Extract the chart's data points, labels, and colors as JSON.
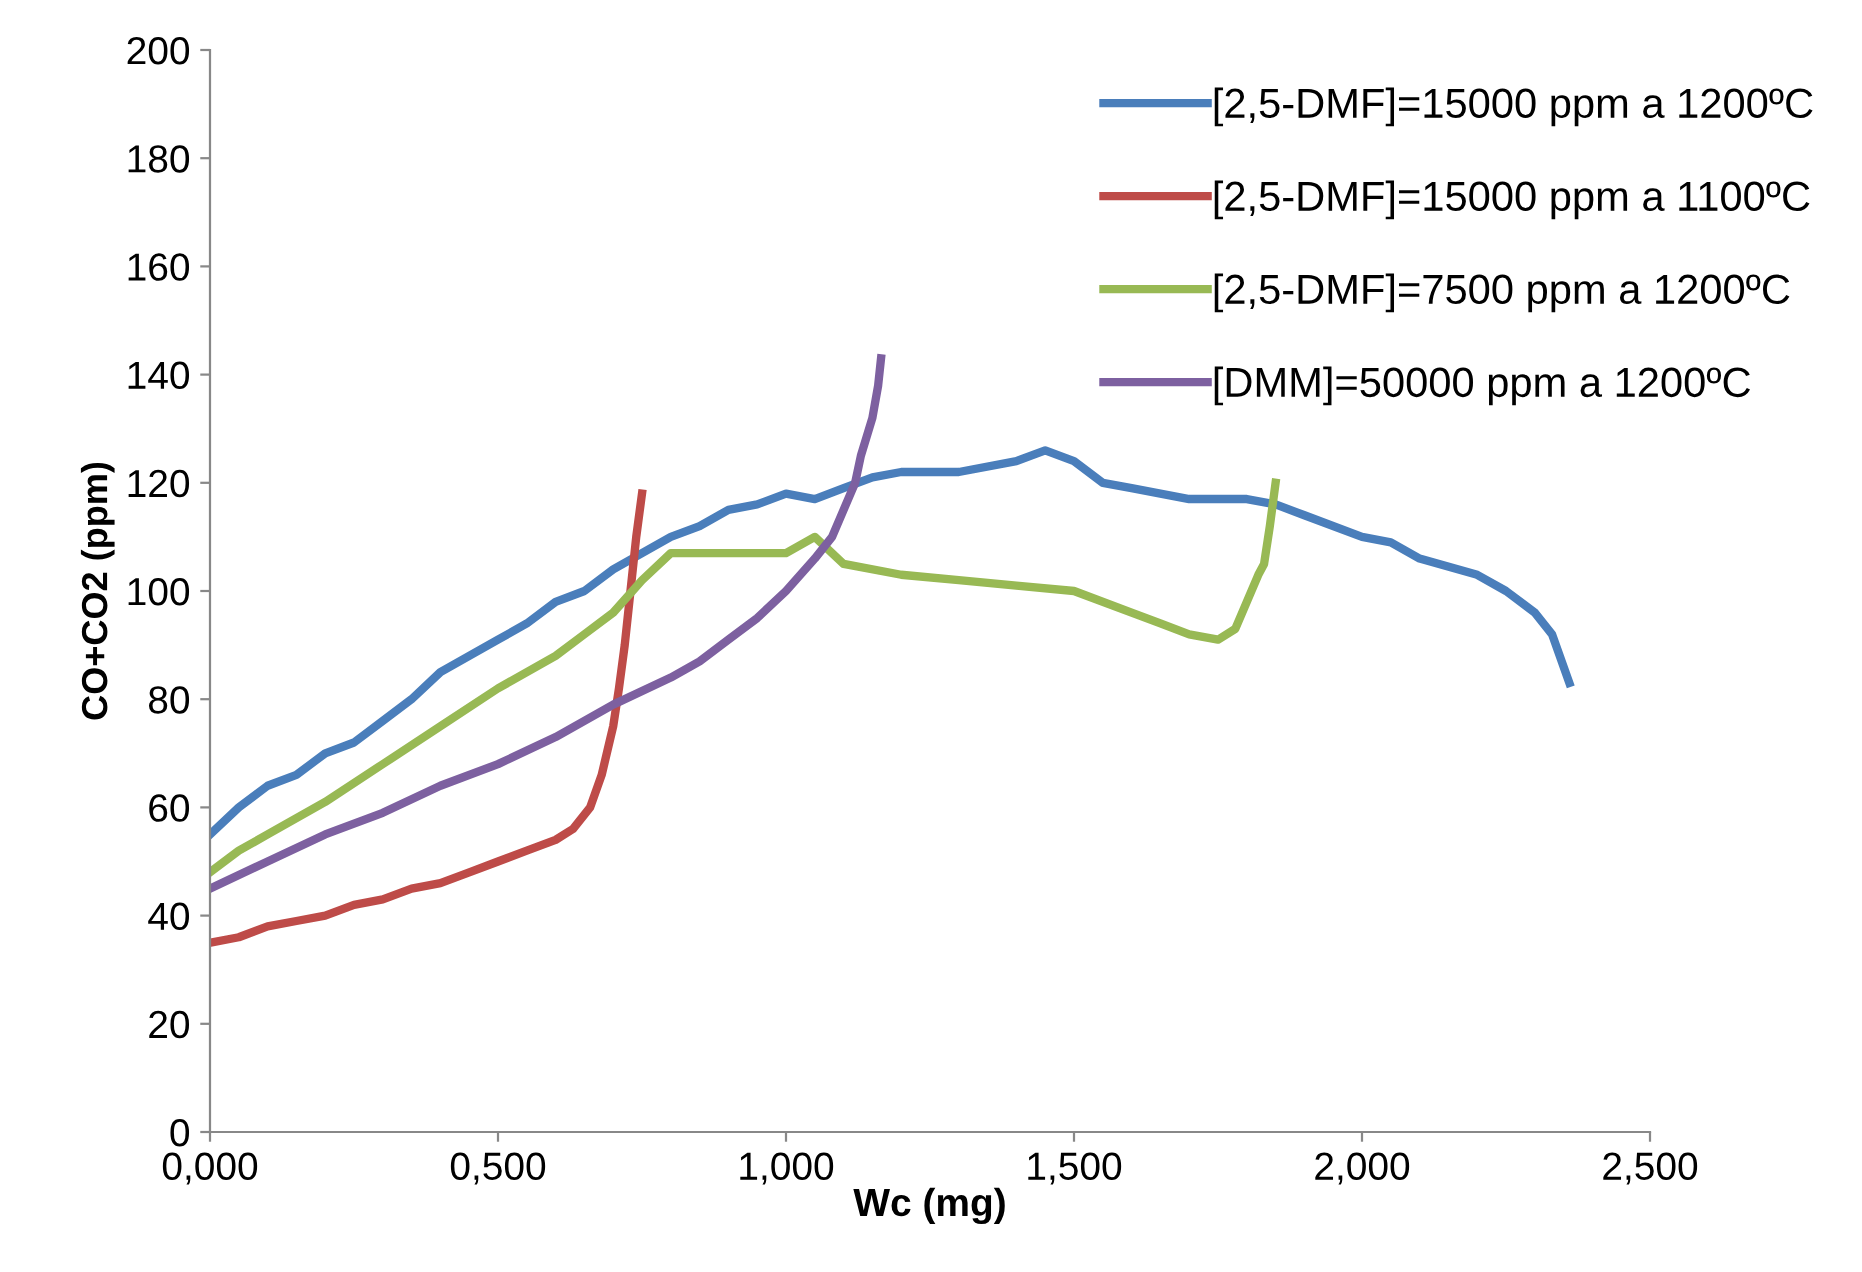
{
  "chart_data": {
    "type": "line",
    "xlabel": "Wc (mg)",
    "ylabel": "CO+CO2 (ppm)",
    "xlim": [
      0,
      2.5
    ],
    "ylim": [
      0,
      200
    ],
    "xticks": [
      {
        "value": 0,
        "label": "0,000"
      },
      {
        "value": 0.5,
        "label": "0,500"
      },
      {
        "value": 1.0,
        "label": "1,000"
      },
      {
        "value": 1.5,
        "label": "1,500"
      },
      {
        "value": 2.0,
        "label": "2,000"
      },
      {
        "value": 2.5,
        "label": "2,500"
      }
    ],
    "yticks": [
      0,
      20,
      40,
      60,
      80,
      100,
      120,
      140,
      160,
      180,
      200
    ],
    "grid": false,
    "legend": "top right",
    "marker": "none",
    "line_style": "solid",
    "series": [
      {
        "name": "[2,5-DMF]=15000 ppm a 1200ºC",
        "color": "#4a7ebb",
        "x": [
          0,
          0.05,
          0.1,
          0.15,
          0.2,
          0.25,
          0.3,
          0.35,
          0.4,
          0.45,
          0.5,
          0.55,
          0.6,
          0.65,
          0.7,
          0.75,
          0.8,
          0.85,
          0.9,
          0.95,
          1.0,
          1.05,
          1.1,
          1.15,
          1.2,
          1.3,
          1.4,
          1.45,
          1.5,
          1.55,
          1.6,
          1.7,
          1.8,
          1.85,
          1.9,
          2.0,
          2.05,
          2.1,
          2.2,
          2.25,
          2.3,
          2.33,
          2.36
        ],
        "values": [
          55,
          60,
          64,
          66,
          70,
          72,
          76,
          80,
          85,
          88,
          91,
          94,
          98,
          100,
          104,
          107,
          110,
          112,
          115,
          116,
          118,
          117,
          119,
          121,
          122,
          122,
          124,
          126,
          124,
          120,
          119,
          117,
          117,
          116,
          114,
          110,
          109,
          106,
          103,
          100,
          96,
          92,
          83
        ]
      },
      {
        "name": "[2,5-DMF]=15000 ppm a 1100ºC",
        "color": "#be4b48",
        "x": [
          0,
          0.05,
          0.1,
          0.15,
          0.2,
          0.25,
          0.3,
          0.35,
          0.4,
          0.45,
          0.5,
          0.55,
          0.6,
          0.63,
          0.66,
          0.68,
          0.7,
          0.71,
          0.72,
          0.73,
          0.74,
          0.75
        ],
        "values": [
          35,
          36,
          38,
          39,
          40,
          42,
          43,
          45,
          46,
          48,
          50,
          52,
          54,
          56,
          60,
          66,
          75,
          82,
          90,
          100,
          110,
          118
        ]
      },
      {
        "name": "[2,5-DMF]=7500 ppm a 1200ºC",
        "color": "#98b954",
        "x": [
          0,
          0.05,
          0.1,
          0.2,
          0.3,
          0.4,
          0.5,
          0.6,
          0.65,
          0.7,
          0.75,
          0.8,
          0.9,
          1.0,
          1.05,
          1.1,
          1.2,
          1.3,
          1.4,
          1.5,
          1.6,
          1.65,
          1.7,
          1.75,
          1.78,
          1.8,
          1.82,
          1.83,
          1.84,
          1.85
        ],
        "values": [
          48,
          52,
          55,
          61,
          68,
          75,
          82,
          88,
          92,
          96,
          102,
          107,
          107,
          107,
          110,
          105,
          103,
          102,
          101,
          100,
          96,
          94,
          92,
          91,
          93,
          98,
          103,
          105,
          112,
          120
        ]
      },
      {
        "name": "[DMM]=50000 ppm a 1200ºC",
        "color": "#7d60a0",
        "x": [
          0,
          0.1,
          0.2,
          0.3,
          0.4,
          0.5,
          0.6,
          0.7,
          0.8,
          0.85,
          0.9,
          0.95,
          1.0,
          1.05,
          1.08,
          1.1,
          1.12,
          1.13,
          1.15,
          1.16,
          1.165
        ],
        "values": [
          45,
          50,
          55,
          59,
          64,
          68,
          73,
          79,
          84,
          87,
          91,
          95,
          100,
          106,
          110,
          115,
          120,
          125,
          132,
          138,
          143
        ]
      }
    ]
  }
}
